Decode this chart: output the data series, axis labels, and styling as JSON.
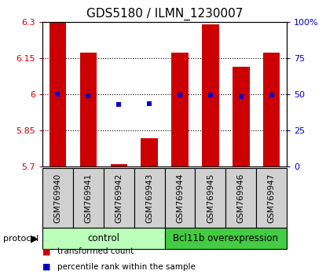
{
  "title": "GDS5180 / ILMN_1230007",
  "samples": [
    "GSM769940",
    "GSM769941",
    "GSM769942",
    "GSM769943",
    "GSM769944",
    "GSM769945",
    "GSM769946",
    "GSM769947"
  ],
  "bar_tops": [
    6.3,
    6.175,
    5.712,
    5.82,
    6.175,
    6.29,
    6.115,
    6.175
  ],
  "bar_bottom": 5.7,
  "blue_values": [
    6.0,
    5.995,
    5.958,
    5.962,
    5.997,
    5.997,
    5.99,
    5.997
  ],
  "ylim": [
    5.7,
    6.3
  ],
  "right_yticks": [
    0,
    25,
    50,
    75,
    100
  ],
  "right_yticklabels": [
    "0",
    "25",
    "50",
    "75",
    "100%"
  ],
  "left_yticks": [
    5.7,
    5.85,
    6.0,
    6.15,
    6.3
  ],
  "left_yticklabels": [
    "5.7",
    "5.85",
    "6",
    "6.15",
    "6.3"
  ],
  "hlines": [
    5.85,
    6.0,
    6.15
  ],
  "bar_color": "#cc0000",
  "blue_color": "#0000cc",
  "groups": [
    {
      "label": "control",
      "start": 0,
      "end": 3,
      "color": "#bbffbb"
    },
    {
      "label": "Bcl11b overexpression",
      "start": 4,
      "end": 7,
      "color": "#44cc44"
    }
  ],
  "protocol_label": "protocol",
  "legend_items": [
    {
      "label": "transformed count",
      "color": "#cc0000"
    },
    {
      "label": "percentile rank within the sample",
      "color": "#0000cc"
    }
  ],
  "background_color": "#ffffff",
  "tick_label_fontsize": 8,
  "title_fontsize": 11,
  "bar_width": 0.55,
  "left_axis_color": "#cc0000",
  "right_axis_color": "#0000cc",
  "sample_box_color": "#d0d0d0",
  "n_samples": 8
}
